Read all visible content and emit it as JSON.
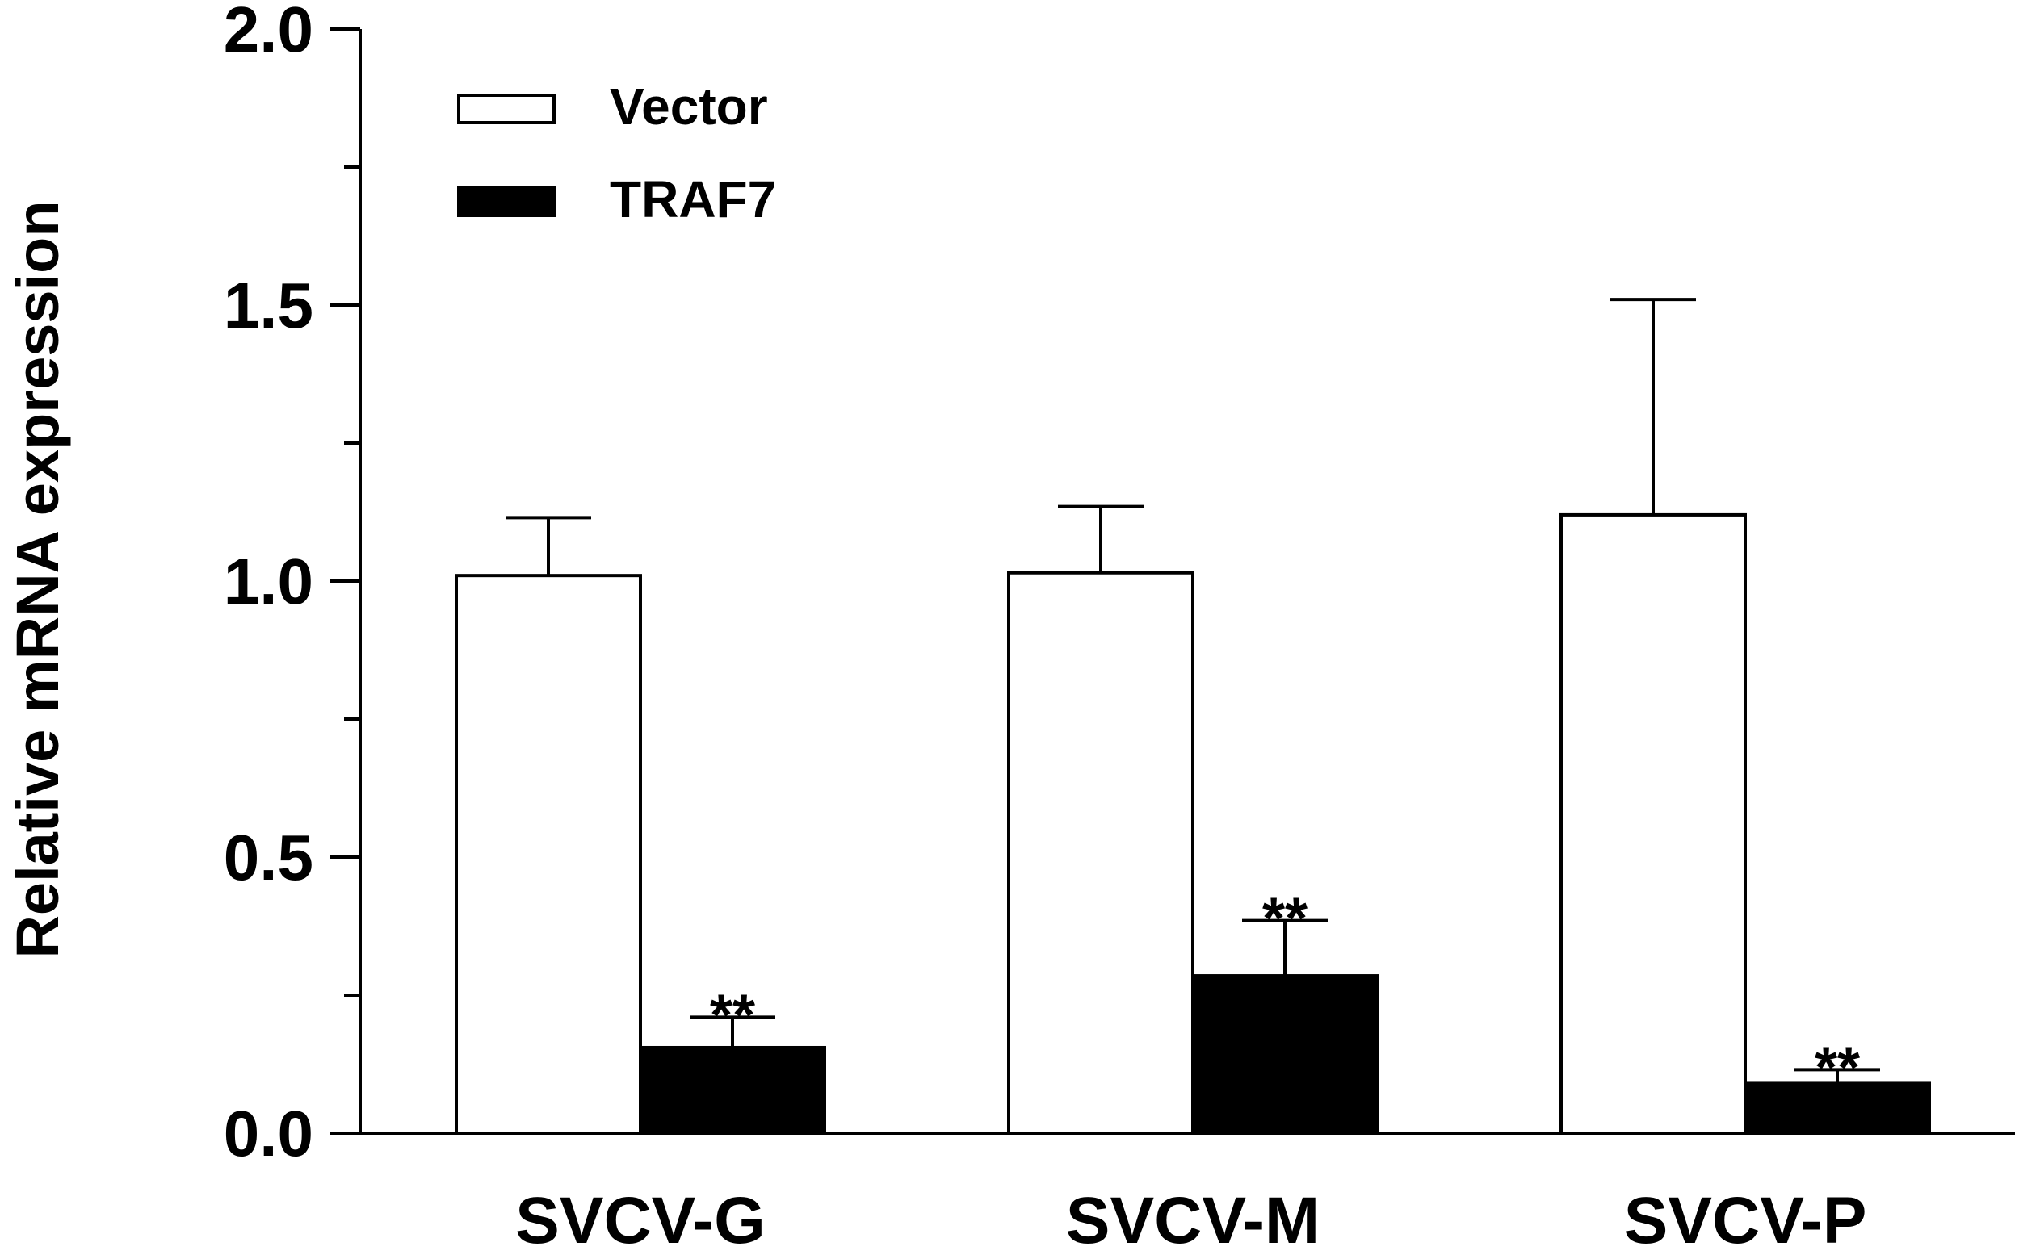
{
  "chart_data": {
    "type": "bar",
    "title": "",
    "xlabel": "",
    "ylabel": "Relative mRNA expression",
    "ylim": [
      0,
      2.0
    ],
    "yticks": [
      0.0,
      0.5,
      1.0,
      1.5,
      2.0
    ],
    "ytick_labels": [
      "0.0",
      "0.5",
      "1.0",
      "1.5",
      "2.0"
    ],
    "minor_tick_step": 0.25,
    "categories": [
      "SVCV-G",
      "SVCV-M",
      "SVCV-P"
    ],
    "series": [
      {
        "name": "Vector",
        "color": "#ffffff",
        "values": [
          1.01,
          1.015,
          1.12
        ],
        "errors": [
          0.105,
          0.12,
          0.39
        ],
        "annotations": [
          "",
          "",
          ""
        ]
      },
      {
        "name": "TRAF7",
        "color": "#000000",
        "values": [
          0.155,
          0.285,
          0.09
        ],
        "errors": [
          0.055,
          0.1,
          0.025
        ],
        "annotations": [
          "**",
          "**",
          "**"
        ]
      }
    ],
    "grid": false,
    "legend_position": "top-left"
  }
}
